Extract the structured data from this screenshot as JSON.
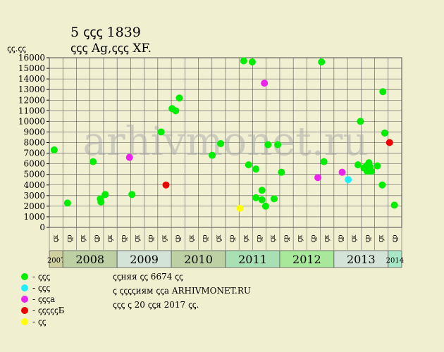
{
  "header": {
    "line1": "5 ꞔꞔꞔ 1839",
    "line2": "ꞔꞔꞔ Ag,ꞔꞔꞔ XF.",
    "unit": "ꞔꞔ.ꞔꞔ"
  },
  "watermark": "arhivmonet.ru",
  "colors": {
    "background": "#f0efd0",
    "plot_bg": "#f1f0d3",
    "grid": "#555555",
    "green": "#00ee00",
    "cyan": "#22eeff",
    "magenta": "#ee22ee",
    "red": "#ee0000",
    "yellow": "#ffff00"
  },
  "legend": [
    {
      "label": "- ꞔꞔꞔ",
      "color": "#00ee00"
    },
    {
      "label": "- ꞔꞔꞔ",
      "color": "#22eeff"
    },
    {
      "label": "- ꞔꞔꞔa",
      "color": "#ee22ee"
    },
    {
      "label": "- ꞔꞔꞔꞔꞔБ",
      "color": "#ee0000"
    },
    {
      "label": "- ꞔꞔ",
      "color": "#ffff00"
    }
  ],
  "notes": [
    "ꞔꞔняя ꞔꞔ 6674 ꞔꞔ",
    "ꞔ ꞔꞔꞔꞔиям ꞔꞔa ARHIVMONET.RU",
    "ꞔꞔꞔ ꞔ 20 ꞔꞔя 2017 ꞔꞔ."
  ],
  "chart_data": {
    "type": "scatter",
    "y_ticks": [
      "0",
      "1000",
      "2000",
      "3000",
      "4000",
      "5000",
      "6000",
      "7000",
      "8000",
      "9000",
      "10000",
      "11000",
      "12000",
      "13000",
      "14000",
      "15000",
      "16000"
    ],
    "ylim": [
      0,
      16000
    ],
    "grid": true,
    "x_half_years": [
      "ꞔк",
      "ꞔр",
      "ꞔк",
      "ꞔр",
      "ꞔк",
      "ꞔр",
      "ꞔк",
      "ꞔр",
      "ꞔк",
      "ꞔр",
      "ꞔк",
      "ꞔр",
      "ꞔк",
      "ꞔр",
      "ꞔк",
      "ꞔр",
      "ꞔк",
      "ꞔр",
      "ꞔк",
      "ꞔр",
      "ꞔк",
      "ꞔр",
      "ꞔк",
      "ꞔр",
      "ꞔк",
      "ꞔр"
    ],
    "years": [
      {
        "label": "2007",
        "start": 0,
        "end": 1,
        "color": "#cfcf9f",
        "small": true
      },
      {
        "label": "2008",
        "start": 1,
        "end": 5,
        "color": "#bcd0a3",
        "small": false
      },
      {
        "label": "2009",
        "start": 5,
        "end": 9,
        "color": "#d4e3d8",
        "small": false
      },
      {
        "label": "2010",
        "start": 9,
        "end": 13,
        "color": "#bcd0a3",
        "small": false
      },
      {
        "label": "2011",
        "start": 13,
        "end": 17,
        "color": "#a8e0b4",
        "small": false
      },
      {
        "label": "2012",
        "start": 17,
        "end": 21,
        "color": "#a8e89a",
        "small": false
      },
      {
        "label": "2013",
        "start": 21,
        "end": 25,
        "color": "#d4e3d8",
        "small": false
      },
      {
        "label": "2014",
        "start": 25,
        "end": 26,
        "color": "#a8e8c8",
        "small": true
      }
    ],
    "points": [
      {
        "x": 0.4,
        "y": 7300,
        "color": "green"
      },
      {
        "x": 1.5,
        "y": 2300,
        "color": "green"
      },
      {
        "x": 3.6,
        "y": 6200,
        "color": "green"
      },
      {
        "x": 4.2,
        "y": 2700,
        "color": "green"
      },
      {
        "x": 4.25,
        "y": 2400,
        "color": "green"
      },
      {
        "x": 4.6,
        "y": 3100,
        "color": "green"
      },
      {
        "x": 6.6,
        "y": 6600,
        "color": "magenta"
      },
      {
        "x": 6.8,
        "y": 3100,
        "color": "green"
      },
      {
        "x": 9.2,
        "y": 9000,
        "color": "green"
      },
      {
        "x": 9.6,
        "y": 4000,
        "color": "red"
      },
      {
        "x": 10.1,
        "y": 11200,
        "color": "green"
      },
      {
        "x": 10.4,
        "y": 11000,
        "color": "green"
      },
      {
        "x": 10.7,
        "y": 12200,
        "color": "green"
      },
      {
        "x": 13.4,
        "y": 6800,
        "color": "green"
      },
      {
        "x": 14.1,
        "y": 7900,
        "color": "green"
      },
      {
        "x": 15.7,
        "y": 1800,
        "color": "yellow"
      },
      {
        "x": 16.0,
        "y": 15700,
        "color": "green"
      },
      {
        "x": 16.4,
        "y": 5900,
        "color": "green"
      },
      {
        "x": 16.7,
        "y": 15600,
        "color": "green"
      },
      {
        "x": 17.0,
        "y": 5500,
        "color": "green"
      },
      {
        "x": 17.0,
        "y": 2800,
        "color": "green"
      },
      {
        "x": 17.5,
        "y": 2600,
        "color": "green"
      },
      {
        "x": 17.5,
        "y": 3500,
        "color": "green"
      },
      {
        "x": 17.7,
        "y": 13600,
        "color": "magenta"
      },
      {
        "x": 17.8,
        "y": 2000,
        "color": "green"
      },
      {
        "x": 18.0,
        "y": 7800,
        "color": "green"
      },
      {
        "x": 18.5,
        "y": 2700,
        "color": "green"
      },
      {
        "x": 18.8,
        "y": 7800,
        "color": "green"
      },
      {
        "x": 19.1,
        "y": 5200,
        "color": "green"
      },
      {
        "x": 22.1,
        "y": 4700,
        "color": "magenta"
      },
      {
        "x": 22.4,
        "y": 15600,
        "color": "green"
      },
      {
        "x": 22.6,
        "y": 6200,
        "color": "green"
      },
      {
        "x": 24.1,
        "y": 5200,
        "color": "magenta"
      },
      {
        "x": 24.6,
        "y": 4500,
        "color": "cyan"
      },
      {
        "x": 25.4,
        "y": 5900,
        "color": "green"
      },
      {
        "x": 25.6,
        "y": 10000,
        "color": "green"
      },
      {
        "x": 25.9,
        "y": 5600,
        "color": "green"
      },
      {
        "x": 26.1,
        "y": 5800,
        "color": "green"
      },
      {
        "x": 26.15,
        "y": 5300,
        "color": "green"
      },
      {
        "x": 26.3,
        "y": 6100,
        "color": "green"
      },
      {
        "x": 26.4,
        "y": 5700,
        "color": "green"
      },
      {
        "x": 26.5,
        "y": 5300,
        "color": "green"
      },
      {
        "x": 27.0,
        "y": 5800,
        "color": "green"
      },
      {
        "x": 27.4,
        "y": 4000,
        "color": "green"
      },
      {
        "x": 27.45,
        "y": 12800,
        "color": "green"
      },
      {
        "x": 27.6,
        "y": 8900,
        "color": "green"
      },
      {
        "x": 28.0,
        "y": 8000,
        "color": "red"
      },
      {
        "x": 28.4,
        "y": 2100,
        "color": "green"
      }
    ]
  }
}
